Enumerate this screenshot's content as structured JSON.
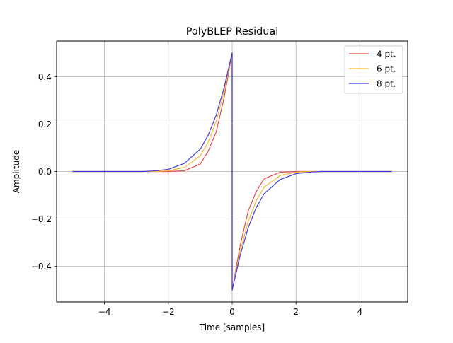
{
  "chart_data": {
    "type": "line",
    "title": "PolyBLEP Residual",
    "xlabel": "Time [samples]",
    "ylabel": "Amplitude",
    "xlim": [
      -5.5,
      5.5
    ],
    "ylim": [
      -0.55,
      0.55
    ],
    "xticks": [
      -4,
      -2,
      0,
      2,
      4
    ],
    "xtick_labels": [
      "−4",
      "−2",
      "0",
      "2",
      "4"
    ],
    "yticks": [
      -0.4,
      -0.2,
      0.0,
      0.2,
      0.4
    ],
    "ytick_labels": [
      "−0.4",
      "−0.2",
      "0.0",
      "0.2",
      "0.4"
    ],
    "grid": true,
    "legend_position": "top-right",
    "x_domain": [
      -5,
      5
    ],
    "series": [
      {
        "name": "4 pt.",
        "color": "#e84a4a",
        "points": [
          [
            -5,
            0
          ],
          [
            -2,
            0
          ],
          [
            -1.5,
            0.003
          ],
          [
            -1.0,
            0.031
          ],
          [
            -0.75,
            0.086
          ],
          [
            -0.5,
            0.167
          ],
          [
            -0.25,
            0.313
          ],
          [
            0,
            0.5
          ],
          [
            0,
            -0.5
          ],
          [
            0.25,
            -0.313
          ],
          [
            0.5,
            -0.167
          ],
          [
            0.75,
            -0.086
          ],
          [
            1.0,
            -0.031
          ],
          [
            1.5,
            -0.003
          ],
          [
            2,
            0
          ],
          [
            5,
            0
          ]
        ]
      },
      {
        "name": "6 pt.",
        "color": "#f5b93a",
        "points": [
          [
            -5,
            0
          ],
          [
            -2.5,
            0
          ],
          [
            -2.0,
            0.003
          ],
          [
            -1.5,
            0.017
          ],
          [
            -1.0,
            0.066
          ],
          [
            -0.75,
            0.124
          ],
          [
            -0.5,
            0.212
          ],
          [
            -0.25,
            0.337
          ],
          [
            0,
            0.5
          ],
          [
            0,
            -0.5
          ],
          [
            0.25,
            -0.337
          ],
          [
            0.5,
            -0.212
          ],
          [
            0.75,
            -0.124
          ],
          [
            1.0,
            -0.066
          ],
          [
            1.5,
            -0.017
          ],
          [
            2.0,
            -0.003
          ],
          [
            2.5,
            0
          ],
          [
            5,
            0
          ]
        ]
      },
      {
        "name": "8 pt.",
        "color": "#3a3ae0",
        "points": [
          [
            -5,
            0
          ],
          [
            -2.8,
            0
          ],
          [
            -2.5,
            0.002
          ],
          [
            -2.0,
            0.009
          ],
          [
            -1.5,
            0.034
          ],
          [
            -1.0,
            0.094
          ],
          [
            -0.75,
            0.153
          ],
          [
            -0.5,
            0.238
          ],
          [
            -0.25,
            0.354
          ],
          [
            0,
            0.5
          ],
          [
            0,
            -0.5
          ],
          [
            0.25,
            -0.354
          ],
          [
            0.5,
            -0.238
          ],
          [
            0.75,
            -0.153
          ],
          [
            1.0,
            -0.094
          ],
          [
            1.5,
            -0.034
          ],
          [
            2.0,
            -0.009
          ],
          [
            2.5,
            -0.002
          ],
          [
            2.8,
            0
          ],
          [
            5,
            0
          ]
        ]
      }
    ]
  }
}
